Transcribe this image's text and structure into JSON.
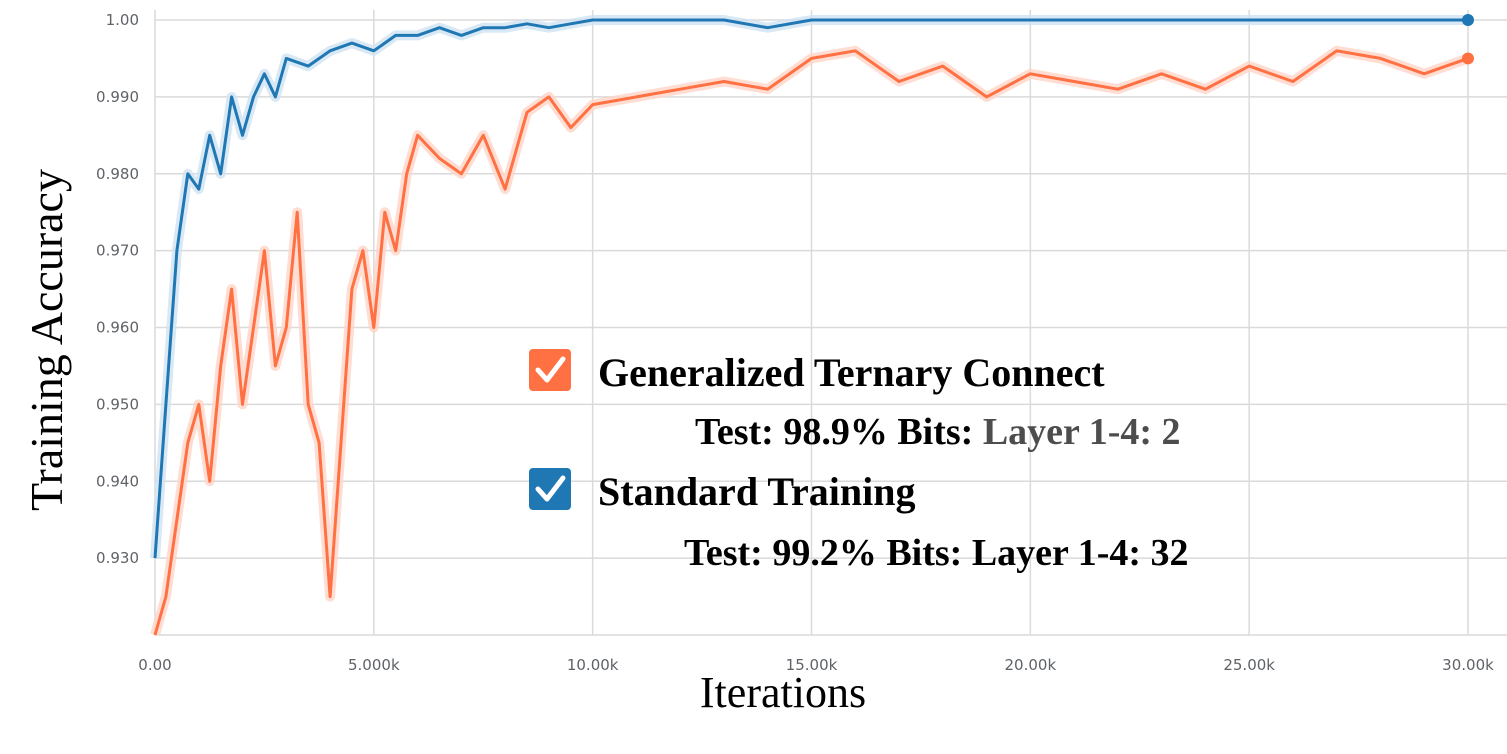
{
  "chart_data": {
    "type": "line",
    "xlabel": "Iterations",
    "ylabel": "Training Accuracy",
    "xlim": [
      0,
      30000
    ],
    "ylim": [
      0.92,
      1.0
    ],
    "grid": true,
    "x_ticks": [
      {
        "value": 0,
        "label": "0.00"
      },
      {
        "value": 5000,
        "label": "5.000k"
      },
      {
        "value": 10000,
        "label": "10.00k"
      },
      {
        "value": 15000,
        "label": "15.00k"
      },
      {
        "value": 20000,
        "label": "20.00k"
      },
      {
        "value": 25000,
        "label": "25.00k"
      },
      {
        "value": 30000,
        "label": "30.00k"
      }
    ],
    "y_ticks": [
      {
        "value": 0.93,
        "label": "0.930"
      },
      {
        "value": 0.94,
        "label": "0.940"
      },
      {
        "value": 0.95,
        "label": "0.950"
      },
      {
        "value": 0.96,
        "label": "0.960"
      },
      {
        "value": 0.97,
        "label": "0.970"
      },
      {
        "value": 0.98,
        "label": "0.980"
      },
      {
        "value": 0.99,
        "label": "0.990"
      },
      {
        "value": 1.0,
        "label": "1.00"
      }
    ],
    "series": [
      {
        "name": "Generalized Ternary Connect",
        "color": "#ff7043",
        "raw_color": "#ffd5c7",
        "x": [
          0,
          250,
          500,
          750,
          1000,
          1250,
          1500,
          1750,
          2000,
          2250,
          2500,
          2750,
          3000,
          3250,
          3500,
          3750,
          4000,
          4250,
          4500,
          4750,
          5000,
          5250,
          5500,
          5750,
          6000,
          6500,
          7000,
          7500,
          8000,
          8500,
          9000,
          9500,
          10000,
          11000,
          12000,
          13000,
          14000,
          15000,
          16000,
          17000,
          18000,
          19000,
          20000,
          21000,
          22000,
          23000,
          24000,
          25000,
          26000,
          27000,
          28000,
          29000,
          29500,
          30000
        ],
        "y": [
          0.92,
          0.925,
          0.935,
          0.945,
          0.95,
          0.94,
          0.955,
          0.965,
          0.95,
          0.96,
          0.97,
          0.955,
          0.96,
          0.975,
          0.95,
          0.945,
          0.925,
          0.945,
          0.965,
          0.97,
          0.96,
          0.975,
          0.97,
          0.98,
          0.985,
          0.982,
          0.98,
          0.985,
          0.978,
          0.988,
          0.99,
          0.986,
          0.989,
          0.99,
          0.991,
          0.992,
          0.991,
          0.995,
          0.996,
          0.992,
          0.994,
          0.99,
          0.993,
          0.992,
          0.991,
          0.993,
          0.991,
          0.994,
          0.992,
          0.996,
          0.995,
          0.993,
          0.994,
          0.995
        ]
      },
      {
        "name": "Standard Training",
        "color": "#1f77b4",
        "raw_color": "#cfe2f3",
        "x": [
          0,
          250,
          500,
          750,
          1000,
          1250,
          1500,
          1750,
          2000,
          2250,
          2500,
          2750,
          3000,
          3500,
          4000,
          4500,
          5000,
          5500,
          6000,
          6500,
          7000,
          7500,
          8000,
          8500,
          9000,
          9500,
          10000,
          11000,
          12000,
          13000,
          14000,
          15000,
          16000,
          18000,
          20000,
          22000,
          24000,
          26000,
          28000,
          30000
        ],
        "y": [
          0.93,
          0.95,
          0.97,
          0.98,
          0.978,
          0.985,
          0.98,
          0.99,
          0.985,
          0.99,
          0.993,
          0.99,
          0.995,
          0.994,
          0.996,
          0.997,
          0.996,
          0.998,
          0.998,
          0.999,
          0.998,
          0.999,
          0.999,
          0.9995,
          0.999,
          0.9995,
          1.0,
          1.0,
          1.0,
          1.0,
          0.999,
          1.0,
          1.0,
          1.0,
          1.0,
          1.0,
          1.0,
          1.0,
          1.0,
          1.0
        ]
      }
    ],
    "legend": {
      "placement": "center-right",
      "entries": [
        {
          "label": "Generalized Ternary Connect",
          "color": "#ff7043",
          "icon": "checkmark-icon",
          "sub_prefix": "Test: 98.9% Bits: ",
          "sub_suffix": "Layer 1-4: 2"
        },
        {
          "label": "Standard Training",
          "color": "#1f77b4",
          "icon": "checkmark-icon",
          "sub_prefix": "Test: 99.2% Bits: ",
          "sub_suffix": "Layer 1-4: 32"
        }
      ]
    }
  }
}
